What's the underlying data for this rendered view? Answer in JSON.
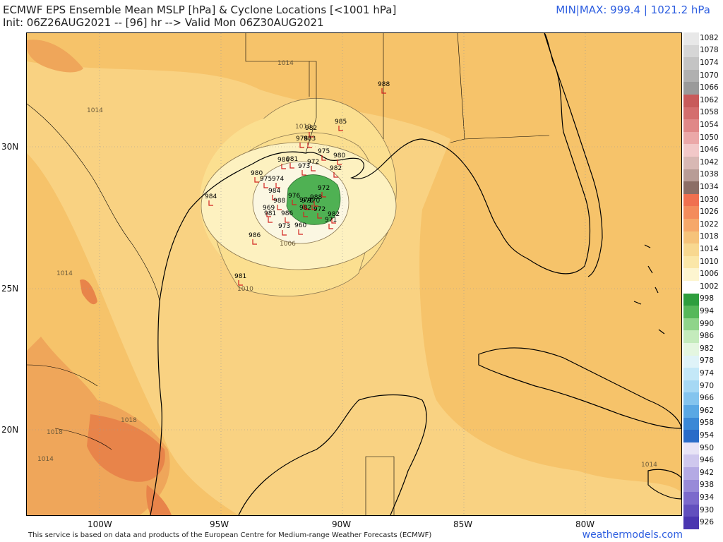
{
  "header": {
    "title_line1": "ECMWF EPS Ensemble Mean MSLP [hPa] & Cyclone Locations [<1001 hPa]",
    "title_line2": "Init: 06Z26AUG2021 -- [96] hr --> Valid Mon 06Z30AUG2021",
    "minmax": "MIN|MAX: 999.4 | 1021.2 hPa"
  },
  "colors": {
    "bg_1014": "#f6c36a",
    "bg_1018": "#efa65a",
    "bg_1022": "#e8844a",
    "low_1010": "#fbdf90",
    "low_1006": "#fdf1c0",
    "low_1002": "#4fb153",
    "land_lines": "#000000",
    "cyclone_marker": "#d2231f"
  },
  "axes": {
    "lat_labels": [
      "30N",
      "25N",
      "20N"
    ],
    "lon_labels": [
      "100W",
      "95W",
      "90W",
      "85W",
      "80W"
    ]
  },
  "isobar_labels": [
    "1014",
    "1014",
    "1014",
    "1018",
    "1018",
    "1014",
    "1014",
    "1010",
    "1006",
    "1010",
    "1014"
  ],
  "cyclones": [
    "985",
    "982",
    "983",
    "978",
    "975",
    "972",
    "980",
    "988",
    "984",
    "980",
    "975",
    "974",
    "981",
    "986",
    "973",
    "982",
    "972",
    "970",
    "972",
    "974",
    "976",
    "970",
    "988",
    "969",
    "981",
    "982",
    "971",
    "960",
    "986",
    "982",
    "973",
    "984",
    "986",
    "981",
    "988"
  ],
  "colorbar": {
    "levels": [
      "1082",
      "1078",
      "1074",
      "1070",
      "1066",
      "1062",
      "1058",
      "1054",
      "1050",
      "1046",
      "1042",
      "1038",
      "1034",
      "1030",
      "1026",
      "1022",
      "1018",
      "1014",
      "1010",
      "1006",
      "1002",
      "998",
      "994",
      "990",
      "986",
      "982",
      "978",
      "974",
      "970",
      "966",
      "962",
      "958",
      "954",
      "950",
      "946",
      "942",
      "938",
      "934",
      "930",
      "926"
    ],
    "colors": [
      "#e8e8e8",
      "#d6d6d6",
      "#c4c4c4",
      "#b0b0b0",
      "#9a9a9a",
      "#c85a5a",
      "#d46e6e",
      "#e08888",
      "#eba8a8",
      "#f2c8c8",
      "#d8b8b4",
      "#b89c96",
      "#8c6e66",
      "#f07050",
      "#f48c5c",
      "#f6a86a",
      "#f6c37a",
      "#f8d890",
      "#fbe7a8",
      "#fdf5d0",
      "#ffffff",
      "#2e9e3e",
      "#56b85a",
      "#8fd48a",
      "#c4ebbc",
      "#e4f6e0",
      "#dff3f8",
      "#c4e8f8",
      "#a6d8f4",
      "#84c4ee",
      "#5aa8e4",
      "#3a88d6",
      "#2a6cc8",
      "#e8e4f6",
      "#cfc8ee",
      "#b4aae4",
      "#988ad8",
      "#7c6acc",
      "#6250be",
      "#4a36b0"
    ]
  },
  "footer": {
    "credit": "This service is based on data and products of the European Centre for Medium-range Weather Forecasts (ECMWF)",
    "brand": "weathermodels.com"
  }
}
